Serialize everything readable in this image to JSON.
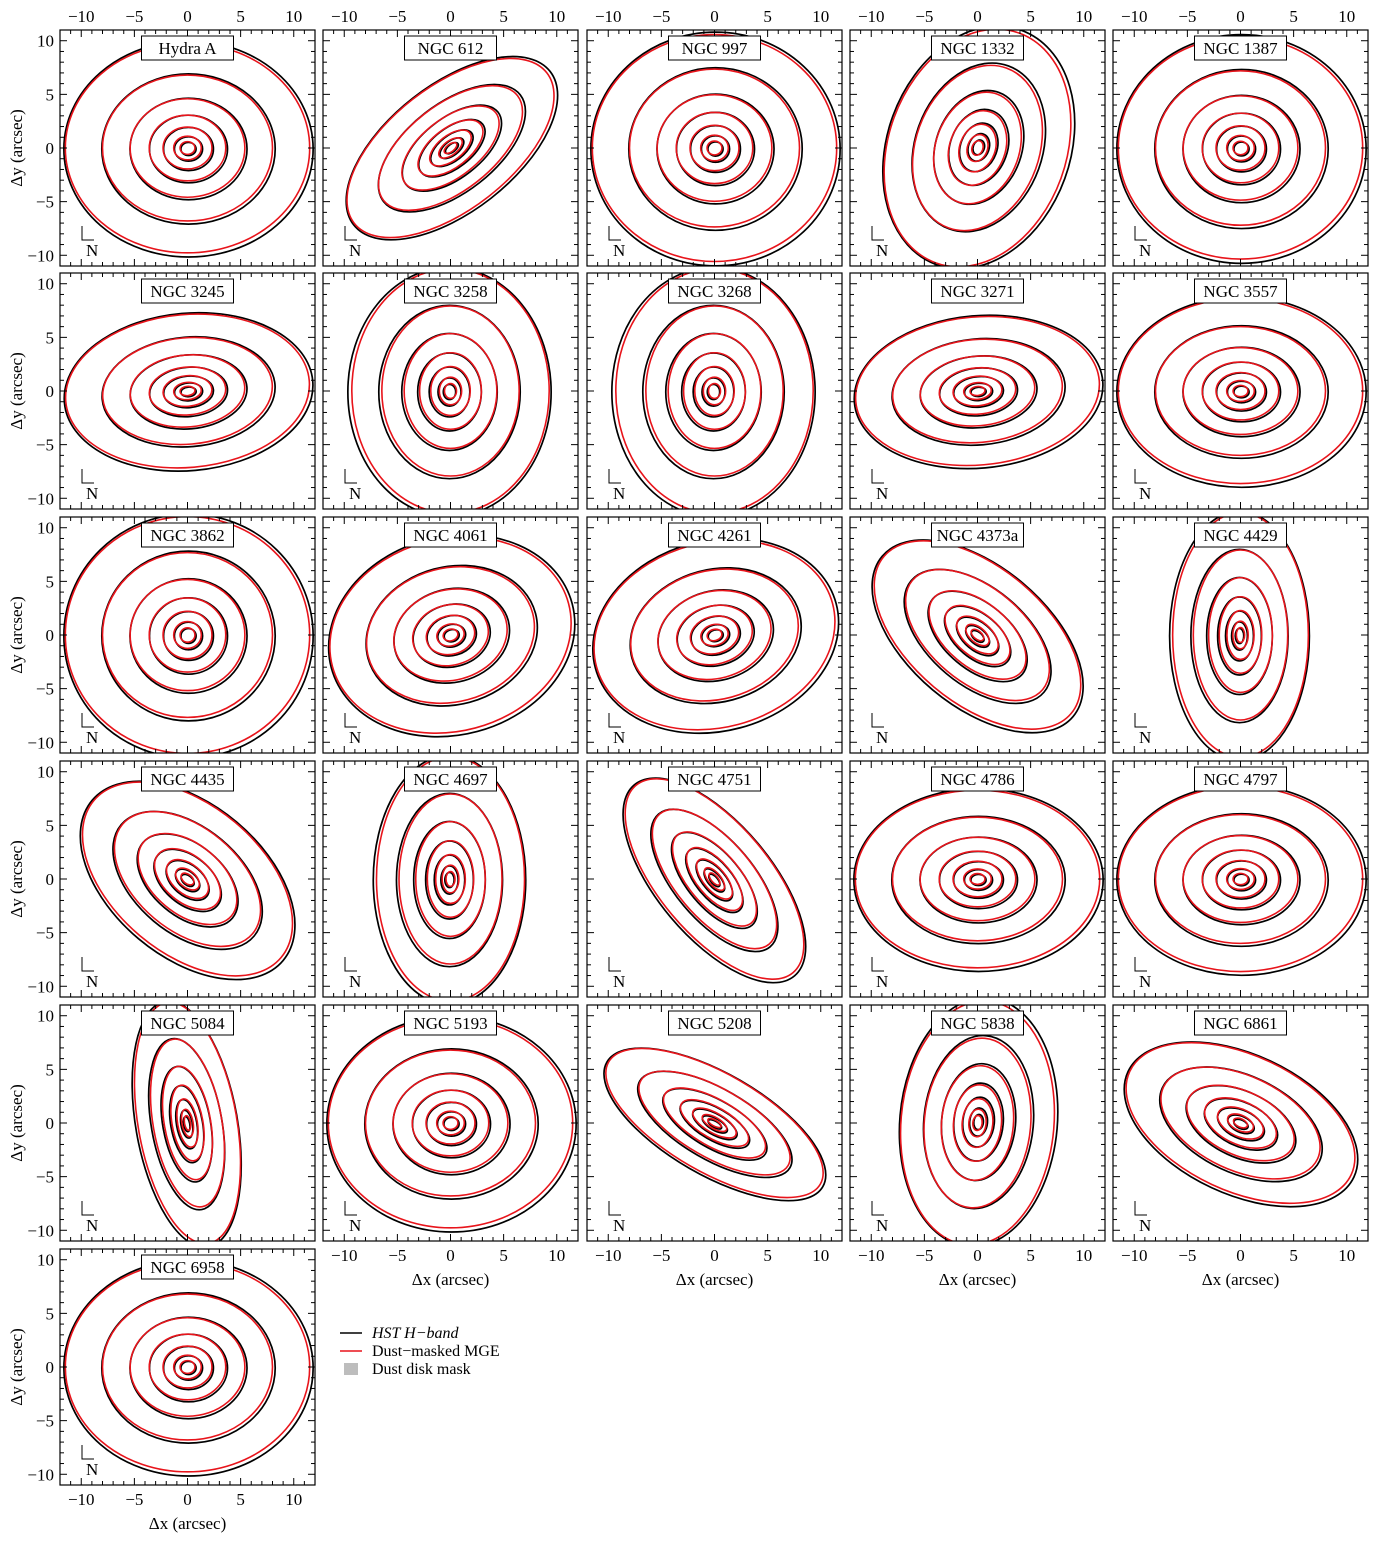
{
  "chart_data": {
    "type": "contour-grid",
    "xlabel": "Δx (arcsec)",
    "ylabel": "Δy (arcsec)",
    "xlim": [
      -12,
      12
    ],
    "ylim": [
      -11,
      11
    ],
    "xticks": [
      -10,
      -5,
      0,
      5,
      10
    ],
    "yticks": [
      -10,
      -5,
      0,
      5,
      10
    ],
    "tick_labels": [
      "−10",
      "−5",
      "0",
      "5",
      "10"
    ],
    "compass_label": "N",
    "legend": {
      "placement": "below-center",
      "entries": [
        {
          "label": "HST H−band",
          "color": "#000000",
          "style": "line"
        },
        {
          "label": "Dust−masked MGE",
          "color": "#e8141b",
          "style": "line"
        },
        {
          "label": "Dust disk mask",
          "color": "#bdbdbd",
          "style": "patch"
        }
      ]
    },
    "colors": {
      "data": "#000000",
      "model": "#e8141b",
      "mask": "#bdbdbd"
    },
    "panels": [
      {
        "name": "Hydra A",
        "q": 0.85,
        "pa": 0
      },
      {
        "name": "NGC 612",
        "q": 0.5,
        "pa": -38
      },
      {
        "name": "NGC 997",
        "q": 0.92,
        "pa": 0
      },
      {
        "name": "NGC 1332",
        "q": 0.72,
        "pa": -70
      },
      {
        "name": "NGC 1387",
        "q": 0.9,
        "pa": 0
      },
      {
        "name": "NGC 3245",
        "q": 0.62,
        "pa": -5
      },
      {
        "name": "NGC 3258",
        "q": 0.8,
        "pa": 90
      },
      {
        "name": "NGC 3268",
        "q": 0.8,
        "pa": 90
      },
      {
        "name": "NGC 3271",
        "q": 0.6,
        "pa": -5
      },
      {
        "name": "NGC 3557",
        "q": 0.75,
        "pa": 0
      },
      {
        "name": "NGC 3862",
        "q": 0.96,
        "pa": 0
      },
      {
        "name": "NGC 4061",
        "q": 0.78,
        "pa": -15
      },
      {
        "name": "NGC 4261",
        "q": 0.75,
        "pa": -15
      },
      {
        "name": "NGC 4373a",
        "q": 0.55,
        "pa": 40
      },
      {
        "name": "NGC 4429",
        "q": 0.55,
        "pa": 90
      },
      {
        "name": "NGC 4435",
        "q": 0.6,
        "pa": 40
      },
      {
        "name": "NGC 4697",
        "q": 0.6,
        "pa": 90
      },
      {
        "name": "NGC 4751",
        "q": 0.45,
        "pa": 50
      },
      {
        "name": "NGC 4786",
        "q": 0.72,
        "pa": 0
      },
      {
        "name": "NGC 4797",
        "q": 0.75,
        "pa": 0
      },
      {
        "name": "NGC 5084",
        "q": 0.4,
        "pa": 80
      },
      {
        "name": "NGC 5193",
        "q": 0.85,
        "pa": 0
      },
      {
        "name": "NGC 5208",
        "q": 0.4,
        "pa": 30
      },
      {
        "name": "NGC 5838",
        "q": 0.62,
        "pa": -85
      },
      {
        "name": "NGC 6861",
        "q": 0.55,
        "pa": 25
      },
      {
        "name": "NGC 6958",
        "q": 0.85,
        "pa": 0
      }
    ]
  }
}
